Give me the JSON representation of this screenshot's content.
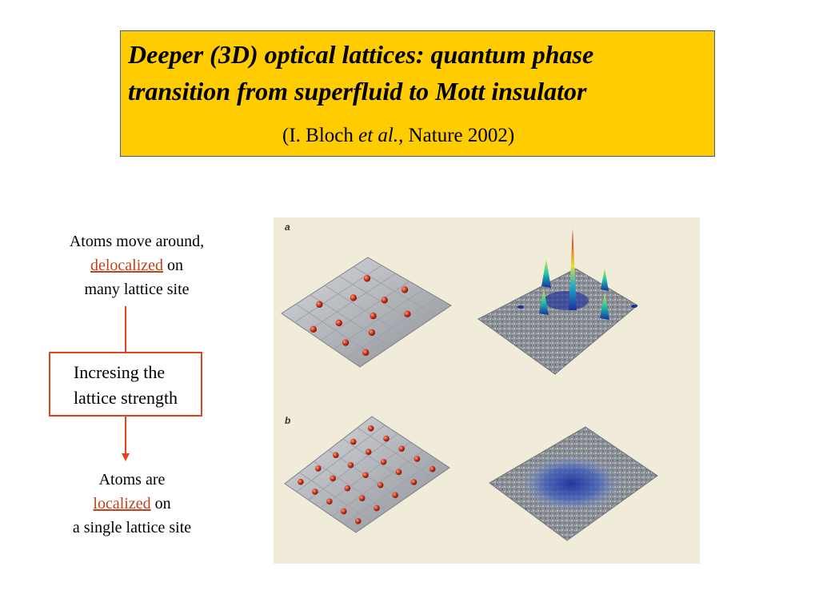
{
  "title": {
    "line1": "Deeper (3D) optical lattices: quantum phase",
    "line2": "transition from superfluid to Mott insulator",
    "citation_prefix": "(I. Bloch ",
    "citation_italic": "et al.,",
    "citation_suffix": "  Nature 2002)"
  },
  "left": {
    "top_line1": "Atoms move around,",
    "top_link": "delocalized",
    "top_line2_rest": " on",
    "top_line3": "many lattice site",
    "box_line1": "Incresing the",
    "box_line2": "lattice strength",
    "bottom_line1": "Atoms are",
    "bottom_link": "localized",
    "bottom_line2_rest": " on",
    "bottom_line3": "a single lattice site"
  },
  "figure": {
    "panel_a": "a",
    "panel_b": "b"
  },
  "colors": {
    "title_bg": "#ffcc00",
    "accent": "#e1451b",
    "link": "#c3411a",
    "figure_bg": "#f0ecd9"
  }
}
